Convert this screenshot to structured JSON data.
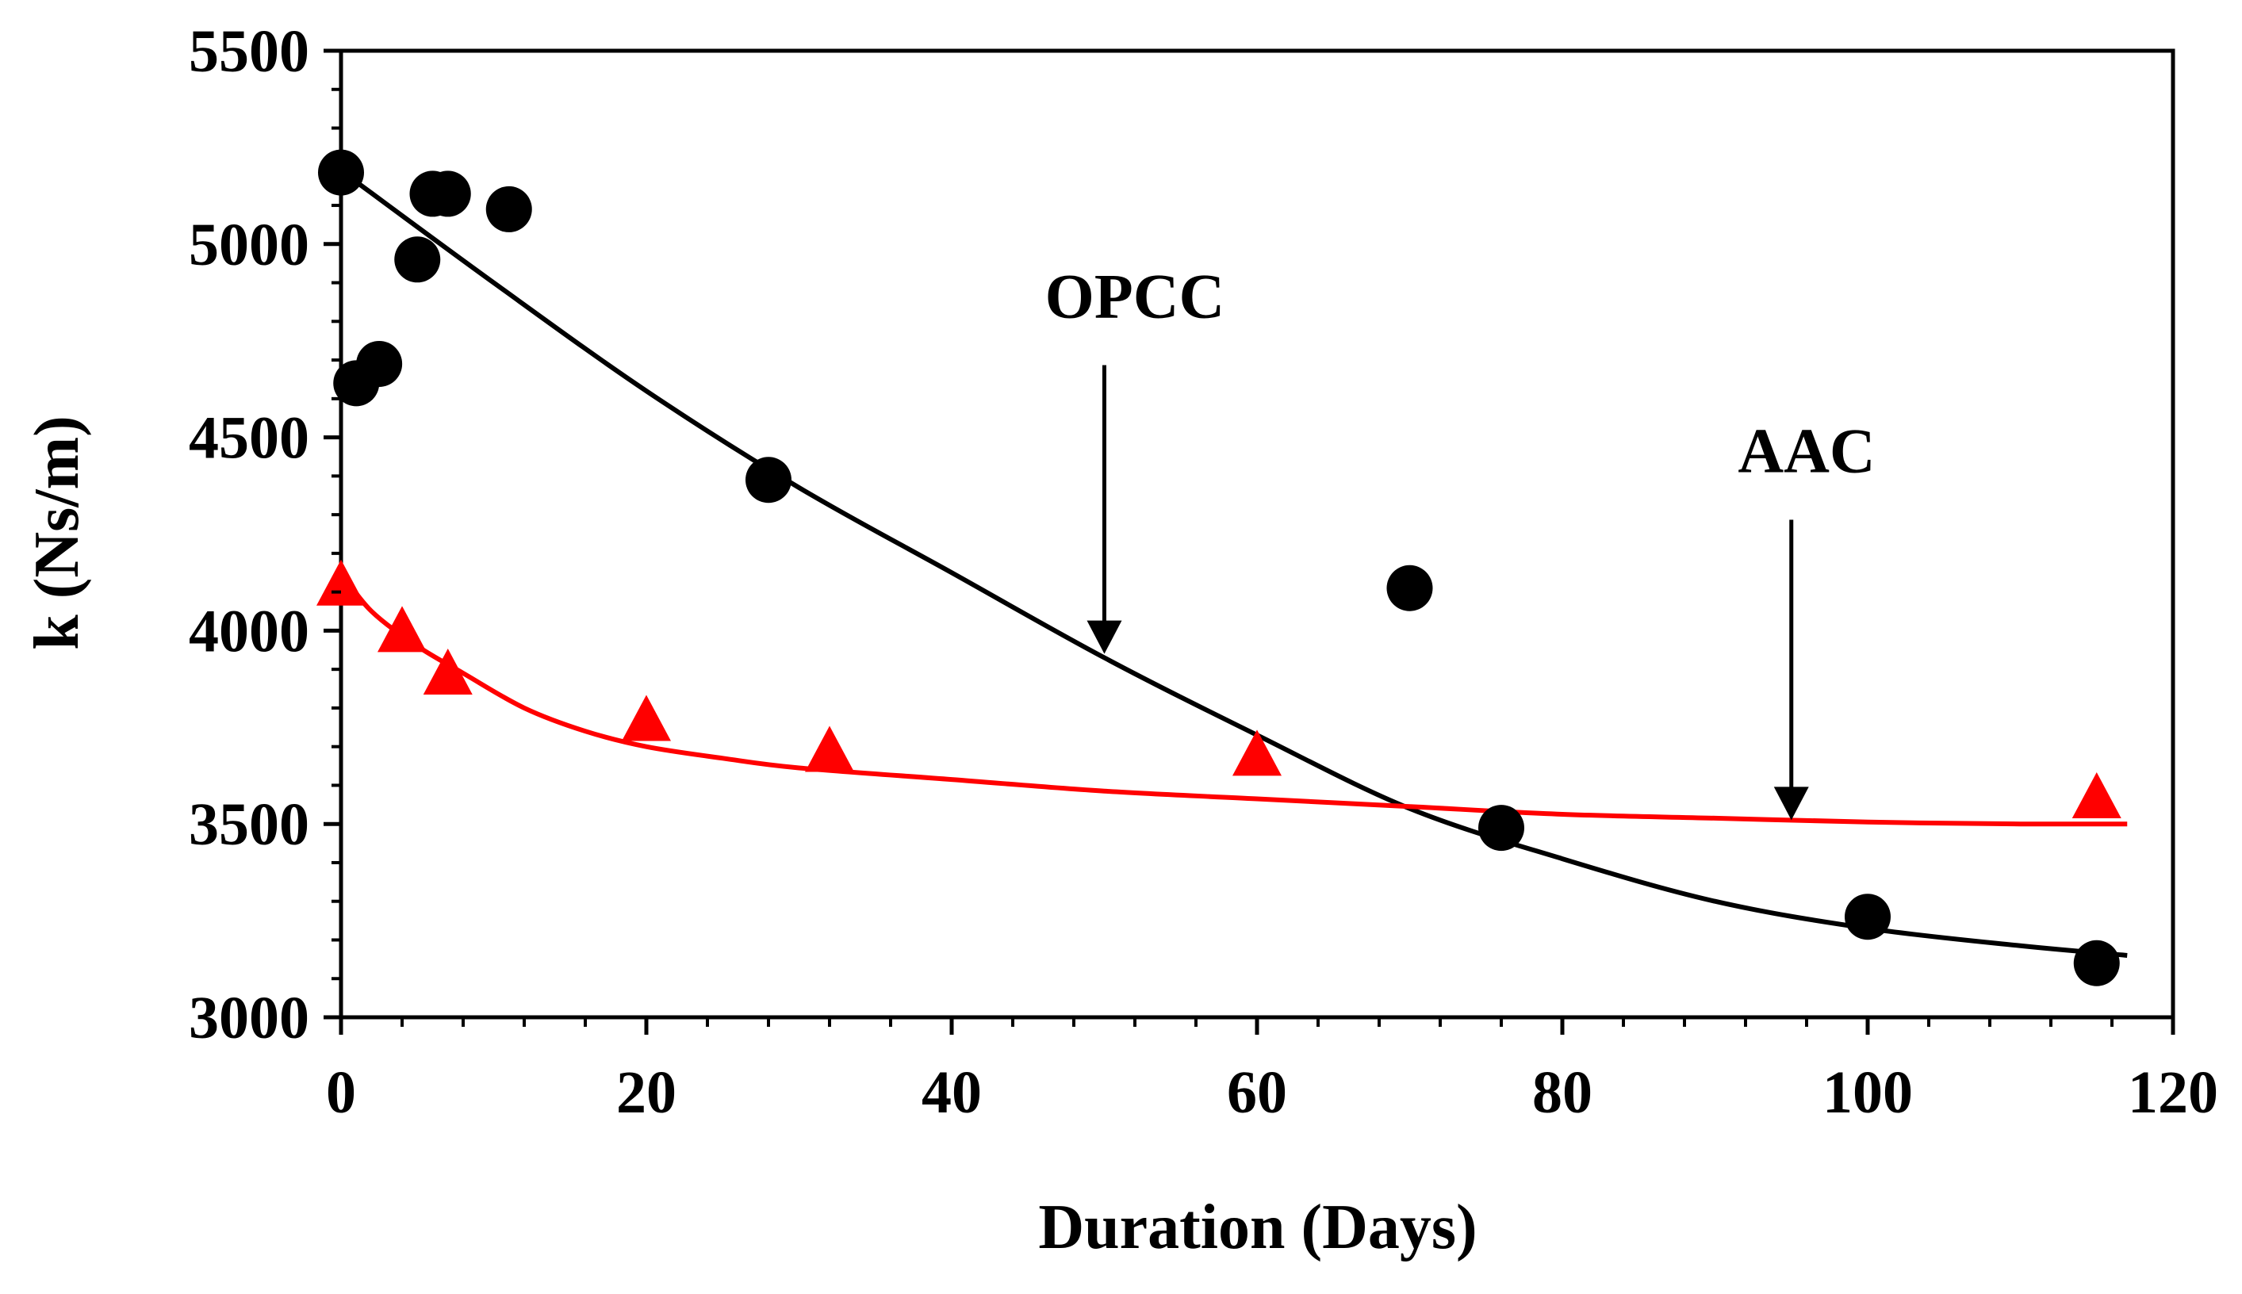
{
  "chart_data": {
    "type": "scatter",
    "title": "",
    "xlabel": "Duration (Days)",
    "ylabel": "k (Ns/m)",
    "xlim": [
      0,
      120
    ],
    "ylim": [
      3000,
      5500
    ],
    "xticks": [
      0,
      20,
      40,
      60,
      80,
      100,
      120
    ],
    "yticks": [
      3000,
      3500,
      4000,
      4500,
      5000,
      5500
    ],
    "xtick_labels": [
      "0",
      "20",
      "40",
      "60",
      "80",
      "100",
      "120"
    ],
    "ytick_labels": [
      "3000",
      "3500",
      "4000",
      "4500",
      "5000",
      "5500"
    ],
    "grid": false,
    "legend": null,
    "series": [
      {
        "name": "OPCC",
        "marker": "circle",
        "color": "#000000",
        "x": [
          0,
          1,
          2.5,
          5,
          6,
          7,
          11,
          28,
          70,
          76,
          100,
          115
        ],
        "y": [
          5185,
          4640,
          4690,
          4960,
          5130,
          5130,
          5090,
          4390,
          4110,
          3490,
          3260,
          3140
        ],
        "trend": {
          "x": [
            0,
            10,
            20,
            30,
            40,
            50,
            60,
            70,
            80,
            90,
            100,
            110,
            117
          ],
          "y": [
            5190,
            4900,
            4620,
            4370,
            4150,
            3930,
            3730,
            3540,
            3410,
            3300,
            3230,
            3185,
            3160
          ]
        }
      },
      {
        "name": "AAC",
        "marker": "triangle",
        "color": "#ff0000",
        "x": [
          0,
          4,
          7,
          20,
          32,
          60,
          115
        ],
        "y": [
          4110,
          3990,
          3880,
          3760,
          3680,
          3670,
          3560
        ],
        "trend": {
          "x": [
            0,
            2,
            5,
            8,
            12,
            16,
            20,
            25,
            30,
            40,
            50,
            60,
            70,
            80,
            90,
            100,
            110,
            117
          ],
          "y": [
            4150,
            4050,
            3960,
            3890,
            3800,
            3740,
            3700,
            3670,
            3645,
            3615,
            3585,
            3565,
            3545,
            3525,
            3515,
            3505,
            3500,
            3500
          ]
        }
      }
    ],
    "annotations": [
      {
        "text": "OPCC",
        "target_x": 50,
        "target_y": 3940,
        "label_x": 52,
        "label_y": 4810
      },
      {
        "text": "AAC",
        "target_x": 95,
        "target_y": 3510,
        "label_x": 96,
        "label_y": 4410
      }
    ]
  }
}
